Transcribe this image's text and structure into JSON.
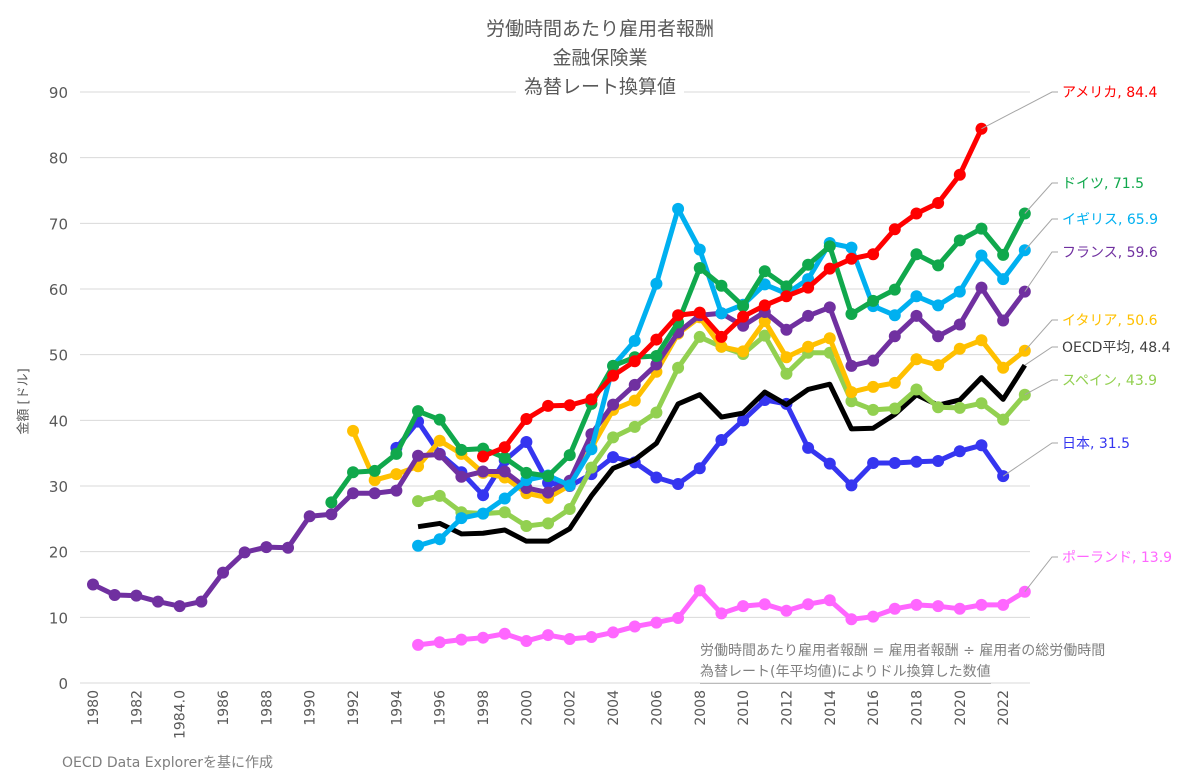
{
  "chart_data": {
    "type": "line",
    "title": [
      "労働時間あたり雇用者報酬",
      "金融保険業",
      "為替レート換算値"
    ],
    "xlabel": "",
    "ylabel": "金額 [ドル]",
    "xlim": [
      1980,
      2023
    ],
    "ylim": [
      0,
      90
    ],
    "yticks": [
      0,
      10,
      20,
      30,
      40,
      50,
      60,
      70,
      80,
      90
    ],
    "xtick_labels": [
      "1980",
      "1982",
      "1984.0",
      "1986",
      "1988",
      "1990",
      "1992",
      "1994",
      "1996",
      "1998",
      "2000",
      "2002",
      "2004",
      "2006",
      "2008",
      "2010",
      "2012",
      "2014",
      "2016",
      "2018",
      "2020",
      "2022"
    ],
    "grid": "horizontal",
    "legend": "end-of-line labels on right",
    "notes": [
      "労働時間あたり雇用者報酬 = 雇用者報酬 ÷ 雇用者の総労働時間",
      "為替レート(年平均値)によりドル換算した数値"
    ],
    "source": "OECD Data Explorerを基に作成",
    "series": [
      {
        "name": "ポーランド",
        "label": "ポーランド, 13.9",
        "color": "#ff66ff",
        "markers": true,
        "start": 1995,
        "values": [
          5.8,
          6.2,
          6.6,
          6.9,
          7.5,
          6.4,
          7.3,
          6.7,
          7.0,
          7.7,
          8.6,
          9.2,
          9.9,
          14.1,
          10.6,
          11.7,
          12.0,
          11.0,
          12.0,
          12.6,
          9.7,
          10.1,
          11.3,
          11.9,
          11.7,
          11.3,
          11.9,
          11.9,
          13.9
        ]
      },
      {
        "name": "日本",
        "label": "日本, 31.5",
        "color": "#3535f0",
        "markers": true,
        "start": 1994,
        "values": [
          35.8,
          39.8,
          34.9,
          32.1,
          28.6,
          33.9,
          36.7,
          30.5,
          30.0,
          31.8,
          34.4,
          33.6,
          31.3,
          30.3,
          32.7,
          37.0,
          40.0,
          43.1,
          42.5,
          35.8,
          33.4,
          30.1,
          33.5,
          33.5,
          33.7,
          33.8,
          35.3,
          36.2,
          31.5
        ]
      },
      {
        "name": "OECD平均",
        "label": "OECD平均, 48.4",
        "color": "#000000",
        "markers": false,
        "start": 1995,
        "values": [
          23.8,
          24.3,
          22.7,
          22.8,
          23.3,
          21.6,
          21.6,
          23.5,
          28.5,
          32.7,
          34.0,
          36.5,
          42.5,
          43.9,
          40.5,
          41.1,
          44.3,
          42.4,
          44.7,
          45.5,
          38.7,
          38.8,
          40.9,
          43.9,
          42.3,
          43.1,
          46.5,
          43.2,
          48.4
        ]
      },
      {
        "name": "スペイン",
        "label": "スペイン, 43.9",
        "color": "#92d050",
        "markers": true,
        "start": 1995,
        "values": [
          27.7,
          28.5,
          26.0,
          25.8,
          26.0,
          23.9,
          24.3,
          26.5,
          32.8,
          37.4,
          39.0,
          41.2,
          48.0,
          52.7,
          51.2,
          50.1,
          52.9,
          47.1,
          50.3,
          50.3,
          42.9,
          41.6,
          41.8,
          44.7,
          42.0,
          41.9,
          42.6,
          40.1,
          43.9
        ]
      },
      {
        "name": "イタリア",
        "label": "イタリア, 50.6",
        "color": "#ffc000",
        "markers": true,
        "start": 1992,
        "values": [
          38.4,
          30.9,
          31.8,
          33.0,
          36.9,
          34.9,
          32.0,
          31.3,
          28.9,
          28.2,
          30.1,
          35.8,
          41.6,
          43.0,
          47.4,
          53.2,
          55.7,
          51.2,
          50.5,
          55.1,
          49.6,
          51.2,
          52.5,
          44.3,
          45.1,
          45.7,
          49.3,
          48.4,
          50.9,
          52.2,
          48.0,
          50.6
        ]
      },
      {
        "name": "フランス",
        "label": "フランス, 59.6",
        "color": "#7030a0",
        "markers": true,
        "start": 1980,
        "values": [
          15.0,
          13.4,
          13.3,
          12.4,
          11.7,
          12.4,
          16.8,
          19.9,
          20.7,
          20.6,
          25.4,
          25.7,
          28.9,
          28.9,
          29.3,
          34.6,
          34.8,
          31.4,
          32.2,
          32.2,
          29.7,
          29.0,
          30.8,
          37.9,
          42.4,
          45.4,
          48.5,
          53.4,
          56.0,
          56.3,
          54.4,
          56.5,
          53.8,
          55.9,
          57.2,
          48.3,
          49.1,
          52.8,
          55.9,
          52.8,
          54.6,
          60.2,
          55.2,
          59.6
        ]
      },
      {
        "name": "イギリス",
        "label": "イギリス, 65.9",
        "color": "#00b0f0",
        "markers": true,
        "start": 1995,
        "values": [
          20.9,
          21.9,
          25.1,
          25.8,
          28.1,
          30.9,
          31.6,
          30.1,
          35.6,
          48.3,
          52.1,
          60.8,
          72.2,
          66.0,
          56.3,
          57.6,
          60.7,
          59.3,
          61.5,
          67.0,
          66.3,
          57.4,
          56.0,
          58.9,
          57.5,
          59.6,
          65.1,
          61.5,
          65.9
        ]
      },
      {
        "name": "ドイツ",
        "label": "ドイツ, 71.5",
        "color": "#10a84c",
        "markers": true,
        "start": 1991,
        "values": [
          27.5,
          32.1,
          32.3,
          34.9,
          41.4,
          40.1,
          35.5,
          35.7,
          34.3,
          32.0,
          31.5,
          34.7,
          42.5,
          48.3,
          49.6,
          49.8,
          54.9,
          63.2,
          60.5,
          57.4,
          62.7,
          60.4,
          63.7,
          66.5,
          56.2,
          58.2,
          59.9,
          65.3,
          63.6,
          67.4,
          69.2,
          65.2,
          71.5
        ]
      },
      {
        "name": "アメリカ",
        "label": "アメリカ, 84.4",
        "color": "#ff0000",
        "markers": true,
        "start": 1998,
        "values": [
          34.5,
          35.9,
          40.2,
          42.2,
          42.3,
          43.2,
          46.8,
          49.0,
          52.3,
          56.0,
          56.4,
          52.7,
          55.8,
          57.5,
          58.9,
          60.2,
          63.1,
          64.6,
          65.3,
          69.1,
          71.5,
          73.1,
          77.4,
          84.4
        ]
      }
    ]
  }
}
